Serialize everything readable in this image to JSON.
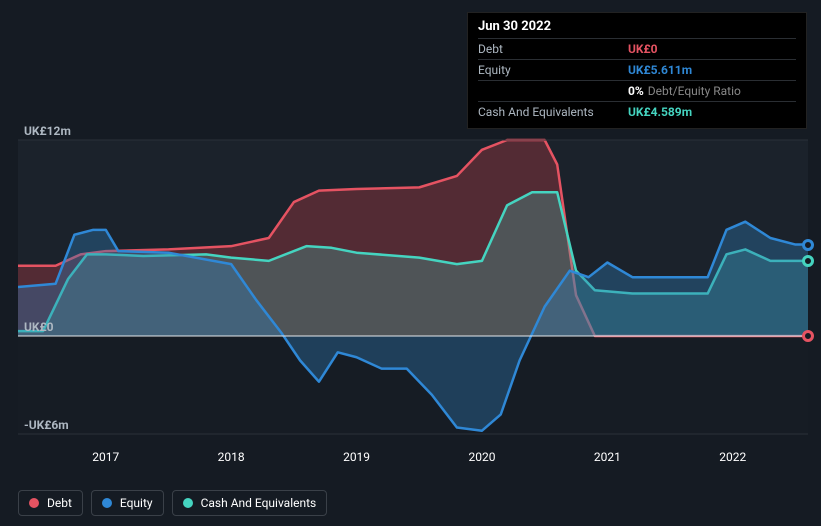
{
  "tooltip": {
    "title": "Jun 30 2022",
    "rows": [
      {
        "label": "Debt",
        "value": "UK£0",
        "color": "#e55362"
      },
      {
        "label": "Equity",
        "value": "UK£5.611m",
        "color": "#2f88d6"
      },
      {
        "label": "",
        "value": "0%",
        "note": "Debt/Equity Ratio",
        "color": "#ffffff"
      },
      {
        "label": "Cash And Equivalents",
        "value": "UK£4.589m",
        "color": "#45d4c0"
      }
    ]
  },
  "chart": {
    "type": "area",
    "background": "#151b23",
    "plot_background_top": "#1b222b",
    "plot_background_bottom": "#161c24",
    "grid_color": "#2a3038",
    "zero_line_color": "#e6e9ec",
    "ylim": [
      -6,
      12
    ],
    "y_ticks": [
      {
        "v": 12,
        "label": "UK£12m"
      },
      {
        "v": 0,
        "label": "UK£0"
      },
      {
        "v": -6,
        "label": "-UK£6m"
      }
    ],
    "x_years": [
      2017,
      2018,
      2019,
      2020,
      2021,
      2022
    ],
    "x_range": [
      2016.3,
      2022.6
    ],
    "series": {
      "debt": {
        "label": "Debt",
        "color": "#e55362",
        "fill": "rgba(190,60,70,0.35)",
        "points": [
          [
            2016.3,
            4.3
          ],
          [
            2016.6,
            4.3
          ],
          [
            2016.8,
            5.0
          ],
          [
            2017.0,
            5.2
          ],
          [
            2017.5,
            5.3
          ],
          [
            2018.0,
            5.5
          ],
          [
            2018.3,
            6.0
          ],
          [
            2018.5,
            8.2
          ],
          [
            2018.7,
            8.9
          ],
          [
            2019.0,
            9.0
          ],
          [
            2019.5,
            9.1
          ],
          [
            2019.8,
            9.8
          ],
          [
            2020.0,
            11.4
          ],
          [
            2020.2,
            12.0
          ],
          [
            2020.5,
            12.0
          ],
          [
            2020.6,
            10.5
          ],
          [
            2020.75,
            2.5
          ],
          [
            2020.9,
            0.0
          ],
          [
            2021.5,
            0.0
          ],
          [
            2022.0,
            0.0
          ],
          [
            2022.6,
            0.0
          ]
        ]
      },
      "equity": {
        "label": "Equity",
        "color": "#2f88d6",
        "fill": "rgba(47,120,180,0.38)",
        "points": [
          [
            2016.3,
            3.0
          ],
          [
            2016.6,
            3.2
          ],
          [
            2016.75,
            6.2
          ],
          [
            2016.9,
            6.5
          ],
          [
            2017.0,
            6.5
          ],
          [
            2017.1,
            5.2
          ],
          [
            2017.5,
            5.1
          ],
          [
            2018.0,
            4.4
          ],
          [
            2018.2,
            2.2
          ],
          [
            2018.4,
            0.2
          ],
          [
            2018.55,
            -1.5
          ],
          [
            2018.7,
            -2.8
          ],
          [
            2018.85,
            -1.0
          ],
          [
            2019.0,
            -1.3
          ],
          [
            2019.2,
            -2.0
          ],
          [
            2019.4,
            -2.0
          ],
          [
            2019.6,
            -3.6
          ],
          [
            2019.8,
            -5.6
          ],
          [
            2020.0,
            -5.8
          ],
          [
            2020.15,
            -4.8
          ],
          [
            2020.3,
            -1.5
          ],
          [
            2020.5,
            1.8
          ],
          [
            2020.7,
            4.0
          ],
          [
            2020.85,
            3.6
          ],
          [
            2021.0,
            4.5
          ],
          [
            2021.2,
            3.6
          ],
          [
            2021.5,
            3.6
          ],
          [
            2021.8,
            3.6
          ],
          [
            2021.95,
            6.5
          ],
          [
            2022.1,
            7.0
          ],
          [
            2022.3,
            6.0
          ],
          [
            2022.5,
            5.6
          ],
          [
            2022.6,
            5.6
          ]
        ]
      },
      "cash": {
        "label": "Cash And Equivalents",
        "color": "#45d4c0",
        "fill": "rgba(69,180,168,0.30)",
        "points": [
          [
            2016.3,
            0.3
          ],
          [
            2016.5,
            0.3
          ],
          [
            2016.7,
            3.5
          ],
          [
            2016.85,
            5.0
          ],
          [
            2017.0,
            5.0
          ],
          [
            2017.3,
            4.9
          ],
          [
            2017.8,
            5.0
          ],
          [
            2018.0,
            4.8
          ],
          [
            2018.3,
            4.6
          ],
          [
            2018.6,
            5.5
          ],
          [
            2018.8,
            5.4
          ],
          [
            2019.0,
            5.1
          ],
          [
            2019.5,
            4.8
          ],
          [
            2019.8,
            4.4
          ],
          [
            2020.0,
            4.6
          ],
          [
            2020.2,
            8.0
          ],
          [
            2020.4,
            8.8
          ],
          [
            2020.6,
            8.8
          ],
          [
            2020.75,
            4.0
          ],
          [
            2020.9,
            2.8
          ],
          [
            2021.2,
            2.6
          ],
          [
            2021.5,
            2.6
          ],
          [
            2021.8,
            2.6
          ],
          [
            2021.95,
            5.0
          ],
          [
            2022.1,
            5.3
          ],
          [
            2022.3,
            4.6
          ],
          [
            2022.5,
            4.6
          ],
          [
            2022.6,
            4.6
          ]
        ]
      }
    },
    "markers": [
      {
        "series": "equity",
        "x": 2022.6,
        "y": 5.6
      },
      {
        "series": "cash",
        "x": 2022.6,
        "y": 4.6
      },
      {
        "series": "debt",
        "x": 2022.6,
        "y": 0.0
      }
    ]
  },
  "legend": [
    {
      "key": "debt",
      "label": "Debt",
      "color": "#e55362"
    },
    {
      "key": "equity",
      "label": "Equity",
      "color": "#2f88d6"
    },
    {
      "key": "cash",
      "label": "Cash And Equivalents",
      "color": "#45d4c0"
    }
  ]
}
